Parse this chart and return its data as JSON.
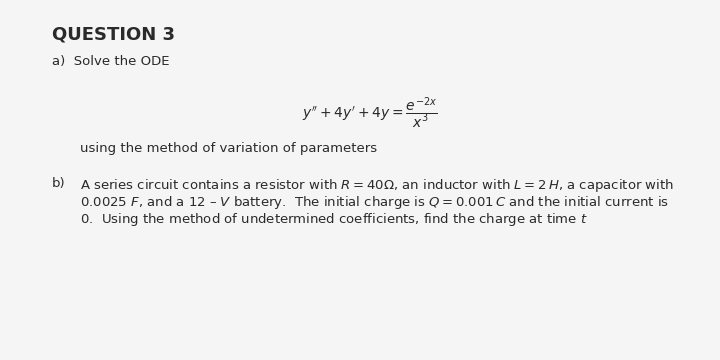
{
  "title": "QUESTION 3",
  "part_a_label": "a)  Solve the ODE",
  "part_a_method": "using the method of variation of parameters",
  "part_b_label": "b)",
  "part_b_text1": "A series circuit contains a resistor with $R = 40\\Omega$, an inductor with $L = 2\\,H$, a capacitor with",
  "part_b_text2": "0.0025 $F$, and a 12 – $V$ battery.  The initial charge is $Q = 0.001\\,C$ and the initial current is",
  "part_b_text3": "0.  Using the method of undetermined coefficients, find the charge at time $t$",
  "bg_color": "#f5f5f5",
  "text_color": "#2a2a2a",
  "title_fontsize": 13,
  "body_fontsize": 9.5,
  "eq_fontsize": 10
}
